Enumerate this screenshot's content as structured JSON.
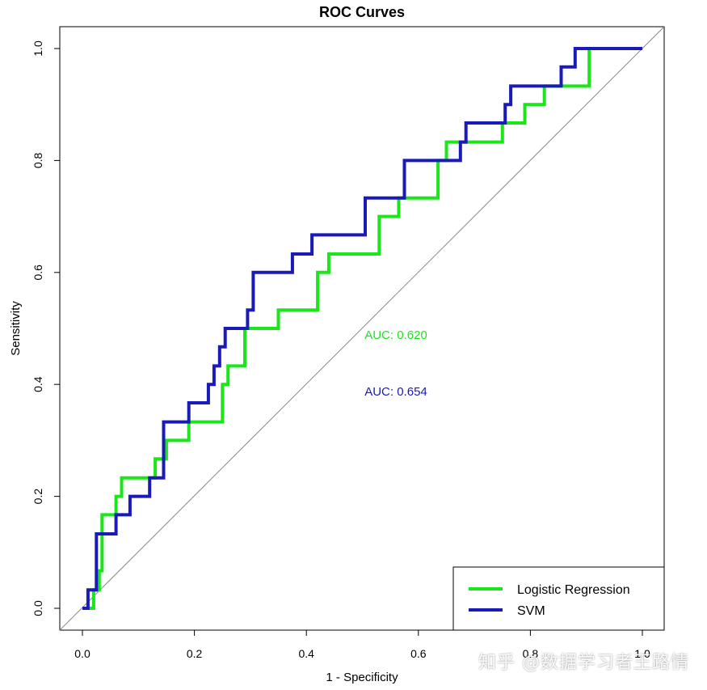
{
  "watermark": "知乎 @数据学习者王路情",
  "chart_data": {
    "type": "line",
    "title": "ROC Curves",
    "xlabel": "1 - Specificity",
    "ylabel": "Sensitivity",
    "xlim": [
      0,
      1
    ],
    "ylim": [
      0,
      1
    ],
    "xticks": [
      0.0,
      0.2,
      0.4,
      0.6,
      0.8,
      1.0
    ],
    "xtick_labels": [
      "0.0",
      "0.2",
      "0.4",
      "0.6",
      "0.8",
      "1.0"
    ],
    "yticks": [
      0.0,
      0.2,
      0.4,
      0.6,
      0.8,
      1.0
    ],
    "ytick_labels": [
      "0.0",
      "0.2",
      "0.4",
      "0.6",
      "0.8",
      "1.0"
    ],
    "grid": false,
    "legend_position": "bottom-right",
    "reference_line": {
      "x": [
        0,
        1
      ],
      "y": [
        0,
        1
      ],
      "color": "#888888"
    },
    "series": [
      {
        "name": "Logistic Regression",
        "color": "#1ae61a",
        "auc_label": "AUC: 0.620",
        "x": [
          0,
          0.02,
          0.02,
          0.03,
          0.03,
          0.035,
          0.035,
          0.06,
          0.06,
          0.07,
          0.07,
          0.13,
          0.13,
          0.15,
          0.15,
          0.19,
          0.19,
          0.25,
          0.25,
          0.26,
          0.26,
          0.29,
          0.29,
          0.35,
          0.35,
          0.42,
          0.42,
          0.44,
          0.44,
          0.53,
          0.53,
          0.565,
          0.565,
          0.635,
          0.635,
          0.65,
          0.65,
          0.75,
          0.75,
          0.79,
          0.79,
          0.825,
          0.825,
          0.905,
          0.905,
          1.0
        ],
        "y": [
          0,
          0,
          0.033,
          0.033,
          0.067,
          0.067,
          0.167,
          0.167,
          0.2,
          0.2,
          0.233,
          0.233,
          0.267,
          0.267,
          0.3,
          0.3,
          0.333,
          0.333,
          0.4,
          0.4,
          0.433,
          0.433,
          0.5,
          0.5,
          0.533,
          0.533,
          0.6,
          0.6,
          0.633,
          0.633,
          0.7,
          0.7,
          0.733,
          0.733,
          0.8,
          0.8,
          0.833,
          0.833,
          0.867,
          0.867,
          0.9,
          0.9,
          0.933,
          0.933,
          1.0,
          1.0
        ]
      },
      {
        "name": "SVM",
        "color": "#1a1ab8",
        "auc_label": "AUC: 0.654",
        "x": [
          0,
          0.01,
          0.01,
          0.025,
          0.025,
          0.06,
          0.06,
          0.085,
          0.085,
          0.12,
          0.12,
          0.145,
          0.145,
          0.19,
          0.19,
          0.225,
          0.225,
          0.235,
          0.235,
          0.245,
          0.245,
          0.255,
          0.255,
          0.295,
          0.295,
          0.305,
          0.305,
          0.375,
          0.375,
          0.41,
          0.41,
          0.505,
          0.505,
          0.575,
          0.575,
          0.675,
          0.675,
          0.685,
          0.685,
          0.755,
          0.755,
          0.765,
          0.765,
          0.855,
          0.855,
          0.88,
          0.88,
          1.0
        ],
        "y": [
          0,
          0,
          0.033,
          0.033,
          0.133,
          0.133,
          0.167,
          0.167,
          0.2,
          0.2,
          0.233,
          0.233,
          0.333,
          0.333,
          0.367,
          0.367,
          0.4,
          0.4,
          0.433,
          0.433,
          0.467,
          0.467,
          0.5,
          0.5,
          0.533,
          0.533,
          0.6,
          0.6,
          0.633,
          0.633,
          0.667,
          0.667,
          0.733,
          0.733,
          0.8,
          0.8,
          0.833,
          0.833,
          0.867,
          0.867,
          0.9,
          0.9,
          0.933,
          0.933,
          0.967,
          0.967,
          1.0,
          1.0
        ]
      }
    ]
  }
}
